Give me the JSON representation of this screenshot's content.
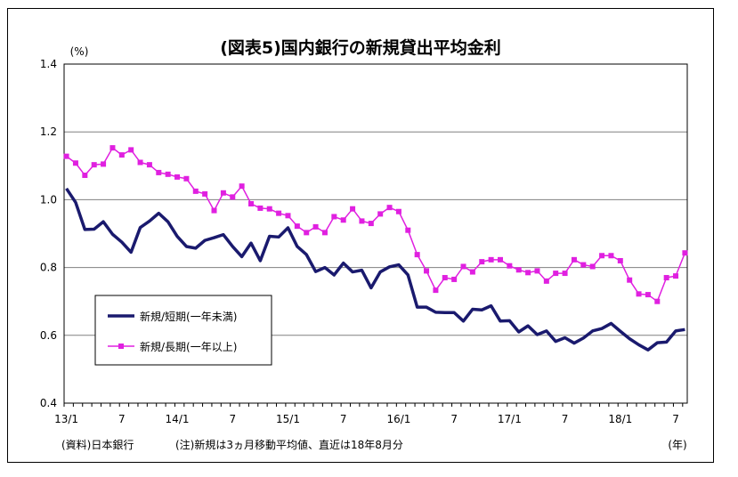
{
  "chart_data": {
    "type": "line",
    "title": "(図表5)国内銀行の新規貸出平均金利",
    "y_unit": "(%)",
    "x_unit": "(年)",
    "ylim": [
      0.4,
      1.4
    ],
    "y_ticks": [
      "1.4",
      "1.2",
      "1.0",
      "0.8",
      "0.6",
      "0.4"
    ],
    "grid": "horizontal",
    "x_tick_labels": [
      "13/1",
      "7",
      "14/1",
      "7",
      "15/1",
      "7",
      "16/1",
      "7",
      "17/1",
      "7",
      "18/1",
      "7"
    ],
    "x_tick_index": [
      0,
      6,
      12,
      18,
      24,
      30,
      36,
      42,
      48,
      54,
      60,
      66
    ],
    "legend_position": "lower-left",
    "series": [
      {
        "name": "新規/短期(一年未満)",
        "color": "#1a1a6e",
        "marker": "none",
        "values": [
          1.033,
          0.992,
          0.912,
          0.913,
          0.935,
          0.898,
          0.875,
          0.845,
          0.918,
          0.937,
          0.96,
          0.935,
          0.892,
          0.862,
          0.857,
          0.88,
          0.888,
          0.897,
          0.862,
          0.832,
          0.872,
          0.82,
          0.892,
          0.89,
          0.917,
          0.862,
          0.838,
          0.788,
          0.8,
          0.778,
          0.813,
          0.787,
          0.792,
          0.74,
          0.787,
          0.802,
          0.808,
          0.778,
          0.683,
          0.683,
          0.668,
          0.667,
          0.667,
          0.642,
          0.677,
          0.675,
          0.687,
          0.642,
          0.643,
          0.61,
          0.628,
          0.602,
          0.613,
          0.582,
          0.593,
          0.577,
          0.592,
          0.613,
          0.62,
          0.635,
          0.612,
          0.59,
          0.572,
          0.557,
          0.578,
          0.58,
          0.613,
          0.617
        ]
      },
      {
        "name": "新規/長期(一年以上)",
        "color": "#e020e0",
        "marker": "square",
        "values": [
          1.128,
          1.108,
          1.072,
          1.103,
          1.105,
          1.153,
          1.132,
          1.147,
          1.11,
          1.103,
          1.08,
          1.075,
          1.067,
          1.062,
          1.025,
          1.017,
          0.968,
          1.02,
          1.008,
          1.04,
          0.988,
          0.975,
          0.973,
          0.96,
          0.953,
          0.922,
          0.903,
          0.92,
          0.903,
          0.95,
          0.94,
          0.973,
          0.937,
          0.93,
          0.958,
          0.977,
          0.965,
          0.91,
          0.838,
          0.79,
          0.733,
          0.77,
          0.765,
          0.803,
          0.787,
          0.817,
          0.823,
          0.823,
          0.805,
          0.793,
          0.785,
          0.79,
          0.76,
          0.783,
          0.783,
          0.823,
          0.808,
          0.803,
          0.835,
          0.835,
          0.82,
          0.763,
          0.722,
          0.72,
          0.7,
          0.77,
          0.775,
          0.843
        ]
      }
    ]
  },
  "footnote_source": "(資料)日本銀行",
  "footnote_note": "(注)新規は3ヵ月移動平均値、直近は18年8月分"
}
